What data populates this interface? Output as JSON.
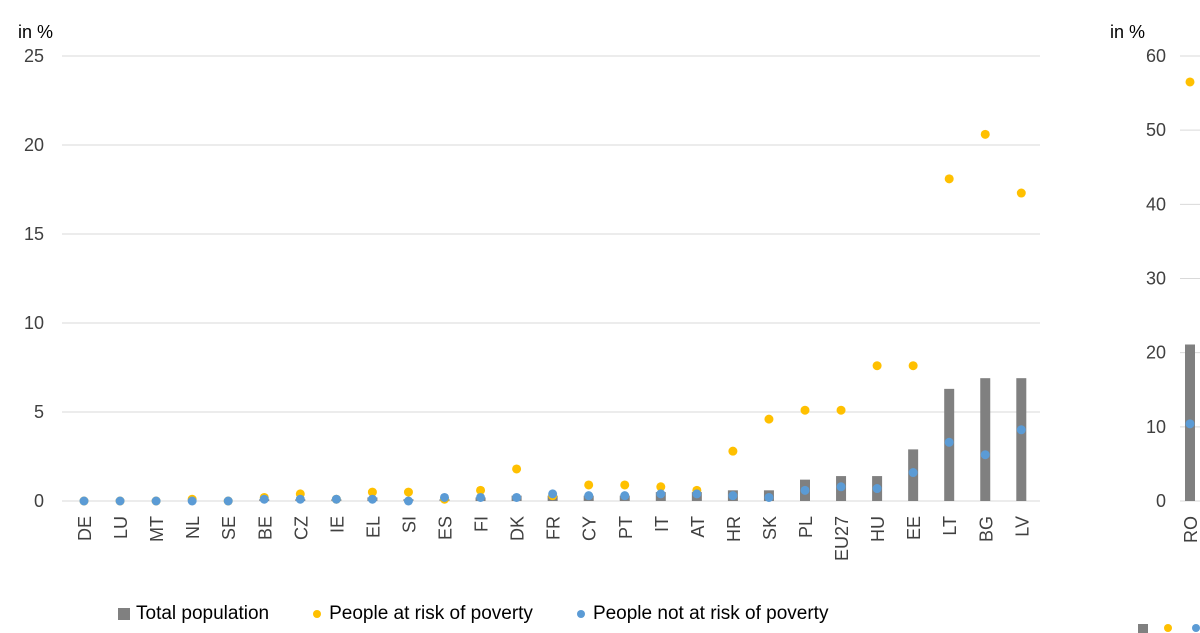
{
  "colors": {
    "total": "#808080",
    "at_risk": "#FFC000",
    "not_at_risk": "#5B9BD5",
    "grid": "#D9D9D9",
    "axis_text": "#404040"
  },
  "legend": {
    "total": "Total population",
    "at_risk": "People at risk of poverty",
    "not_at_risk": "People not at risk of poverty"
  },
  "chart_data": [
    {
      "type": "bar",
      "unit_label": "in %",
      "ylim": [
        0,
        25
      ],
      "yticks": [
        0,
        5,
        10,
        15,
        20,
        25
      ],
      "grid": true,
      "legend_position": "bottom",
      "categories": [
        "DE",
        "LU",
        "MT",
        "NL",
        "SE",
        "BE",
        "CZ",
        "IE",
        "EL",
        "SI",
        "ES",
        "FI",
        "DK",
        "FR",
        "CY",
        "PT",
        "IT",
        "AT",
        "HR",
        "SK",
        "PL",
        "EU27",
        "HU",
        "EE",
        "LT",
        "BG",
        "LV"
      ],
      "series": [
        {
          "name": "Total population",
          "kind": "bar",
          "values": [
            0,
            0,
            0,
            0,
            0,
            0.1,
            0.1,
            0.1,
            0.2,
            0.1,
            0.1,
            0.2,
            0.3,
            0.3,
            0.3,
            0.3,
            0.5,
            0.5,
            0.6,
            0.6,
            1.2,
            1.4,
            1.4,
            2.9,
            6.3,
            6.9,
            6.9
          ]
        },
        {
          "name": "People at risk of poverty",
          "kind": "point",
          "values": [
            0,
            0,
            0,
            0.1,
            0,
            0.2,
            0.4,
            0.1,
            0.5,
            0.5,
            0.1,
            0.6,
            1.8,
            0.3,
            0.9,
            0.9,
            0.8,
            0.6,
            2.8,
            4.6,
            5.1,
            5.1,
            7.6,
            7.6,
            18.1,
            20.6,
            17.3
          ]
        },
        {
          "name": "People not at risk of poverty",
          "kind": "point",
          "values": [
            0,
            0,
            0,
            0,
            0,
            0.1,
            0.1,
            0.1,
            0.1,
            0,
            0.2,
            0.2,
            0.2,
            0.4,
            0.3,
            0.3,
            0.4,
            0.4,
            0.3,
            0.2,
            0.6,
            0.8,
            0.7,
            1.6,
            3.3,
            2.6,
            4
          ]
        }
      ]
    },
    {
      "type": "bar",
      "unit_label": "in %",
      "ylim": [
        0,
        60
      ],
      "yticks": [
        0,
        10,
        20,
        30,
        40,
        50,
        60
      ],
      "grid": true,
      "categories": [
        "RO"
      ],
      "series": [
        {
          "name": "Total population",
          "kind": "bar",
          "values": [
            21.1
          ]
        },
        {
          "name": "People at risk of poverty",
          "kind": "point",
          "values": [
            56.5
          ]
        },
        {
          "name": "People not at risk of poverty",
          "kind": "point",
          "values": [
            10.4
          ]
        }
      ]
    }
  ]
}
